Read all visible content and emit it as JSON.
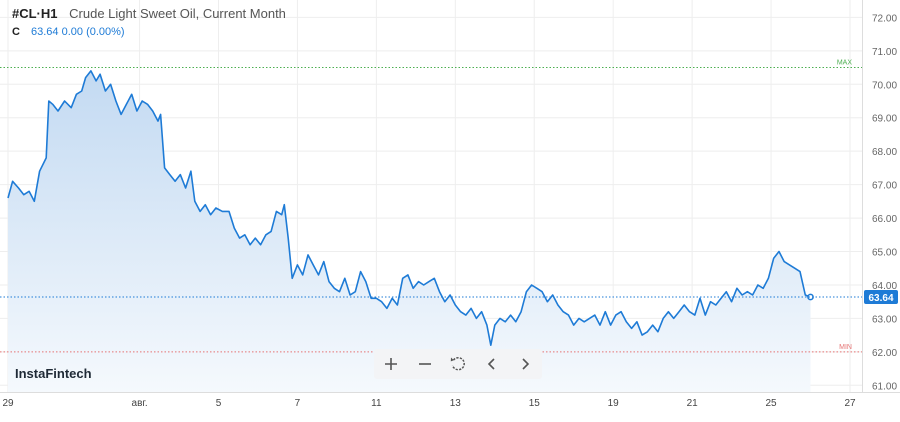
{
  "header": {
    "symbol": "#CL·H1",
    "instrument": "Crude Light Sweet Oil, Current Month",
    "ohlc_label": "C",
    "close_value": "63.64",
    "change": "0.00 (0.00%)"
  },
  "branding": {
    "logo_text": "InstaFintech"
  },
  "toolbar": {
    "buttons": [
      {
        "name": "zoom-in-button",
        "icon": "plus-icon"
      },
      {
        "name": "zoom-out-button",
        "icon": "minus-icon"
      },
      {
        "name": "reset-button",
        "icon": "reset-icon"
      },
      {
        "name": "scroll-left-button",
        "icon": "chevron-left-icon"
      },
      {
        "name": "scroll-right-button",
        "icon": "chevron-right-icon"
      }
    ]
  },
  "colors": {
    "line": "#1e7bd6",
    "fill_top": "#c3daf2",
    "fill_bottom": "#f5f9fd",
    "max_line": "#4caf50",
    "min_line": "#e57373",
    "last_price_bg": "#1e7bd6",
    "grid": "#eeeeee"
  },
  "chart_data": {
    "type": "area",
    "title": "Crude Light Sweet Oil, Current Month",
    "xlabel": "",
    "ylabel": "",
    "ylim": [
      60.8,
      72.4
    ],
    "y_ticks": [
      "72.00",
      "71.00",
      "70.00",
      "69.00",
      "68.00",
      "67.00",
      "66.00",
      "65.00",
      "64.00",
      "63.00",
      "62.00",
      "61.00"
    ],
    "x_ticks": [
      {
        "label": "29",
        "x": 0
      },
      {
        "label": "авг.",
        "x": 10
      },
      {
        "label": "5",
        "x": 16
      },
      {
        "label": "7",
        "x": 22
      },
      {
        "label": "11",
        "x": 28
      },
      {
        "label": "13",
        "x": 34
      },
      {
        "label": "15",
        "x": 40
      },
      {
        "label": "19",
        "x": 46
      },
      {
        "label": "21",
        "x": 52
      },
      {
        "label": "25",
        "x": 58
      },
      {
        "label": "27",
        "x": 64
      }
    ],
    "xlim": [
      0,
      64
    ],
    "max": {
      "label": "MAX",
      "value": 70.5
    },
    "min": {
      "label": "MIN",
      "value": 62.0
    },
    "last_price": {
      "label": "63.64",
      "value": 63.64
    },
    "grid": true,
    "series": [
      {
        "points": [
          [
            0,
            66.6
          ],
          [
            0.35,
            67.1
          ],
          [
            0.8,
            66.9
          ],
          [
            1.2,
            66.7
          ],
          [
            1.6,
            66.8
          ],
          [
            2.0,
            66.5
          ],
          [
            2.4,
            67.4
          ],
          [
            2.9,
            67.8
          ],
          [
            3.1,
            69.5
          ],
          [
            3.4,
            69.4
          ],
          [
            3.8,
            69.2
          ],
          [
            4.3,
            69.5
          ],
          [
            4.8,
            69.3
          ],
          [
            5.2,
            69.7
          ],
          [
            5.6,
            69.8
          ],
          [
            5.9,
            70.2
          ],
          [
            6.3,
            70.4
          ],
          [
            6.7,
            70.1
          ],
          [
            7.0,
            70.3
          ],
          [
            7.4,
            69.8
          ],
          [
            7.8,
            70.0
          ],
          [
            8.2,
            69.5
          ],
          [
            8.6,
            69.1
          ],
          [
            9.0,
            69.4
          ],
          [
            9.4,
            69.7
          ],
          [
            9.8,
            69.2
          ],
          [
            10.2,
            69.5
          ],
          [
            10.6,
            69.4
          ],
          [
            11.0,
            69.2
          ],
          [
            11.4,
            68.9
          ],
          [
            11.6,
            69.1
          ],
          [
            11.9,
            67.5
          ],
          [
            12.3,
            67.3
          ],
          [
            12.7,
            67.1
          ],
          [
            13.1,
            67.3
          ],
          [
            13.5,
            66.9
          ],
          [
            13.9,
            67.4
          ],
          [
            14.2,
            66.5
          ],
          [
            14.6,
            66.2
          ],
          [
            15.0,
            66.4
          ],
          [
            15.4,
            66.1
          ],
          [
            15.8,
            66.3
          ],
          [
            16.3,
            66.2
          ],
          [
            16.8,
            66.2
          ],
          [
            17.2,
            65.7
          ],
          [
            17.6,
            65.4
          ],
          [
            18.0,
            65.5
          ],
          [
            18.4,
            65.2
          ],
          [
            18.8,
            65.4
          ],
          [
            19.2,
            65.2
          ],
          [
            19.6,
            65.5
          ],
          [
            20.0,
            65.6
          ],
          [
            20.4,
            66.2
          ],
          [
            20.8,
            66.1
          ],
          [
            21.0,
            66.4
          ],
          [
            21.3,
            65.4
          ],
          [
            21.6,
            64.2
          ],
          [
            22.0,
            64.6
          ],
          [
            22.4,
            64.3
          ],
          [
            22.8,
            64.9
          ],
          [
            23.2,
            64.6
          ],
          [
            23.6,
            64.3
          ],
          [
            24.0,
            64.7
          ],
          [
            24.4,
            64.1
          ],
          [
            24.8,
            63.9
          ],
          [
            25.2,
            63.8
          ],
          [
            25.6,
            64.2
          ],
          [
            26.0,
            63.7
          ],
          [
            26.4,
            63.8
          ],
          [
            26.8,
            64.4
          ],
          [
            27.2,
            64.1
          ],
          [
            27.6,
            63.6
          ],
          [
            28.0,
            63.6
          ],
          [
            28.4,
            63.5
          ],
          [
            28.8,
            63.3
          ],
          [
            29.2,
            63.6
          ],
          [
            29.6,
            63.4
          ],
          [
            30.0,
            64.2
          ],
          [
            30.4,
            64.3
          ],
          [
            30.8,
            63.9
          ],
          [
            31.2,
            64.1
          ],
          [
            31.6,
            64.0
          ],
          [
            32.0,
            64.1
          ],
          [
            32.4,
            64.2
          ],
          [
            32.8,
            63.8
          ],
          [
            33.2,
            63.5
          ],
          [
            33.6,
            63.7
          ],
          [
            34.0,
            63.4
          ],
          [
            34.4,
            63.2
          ],
          [
            34.8,
            63.1
          ],
          [
            35.2,
            63.3
          ],
          [
            35.6,
            63.0
          ],
          [
            36.0,
            63.2
          ],
          [
            36.4,
            62.8
          ],
          [
            36.7,
            62.2
          ],
          [
            37.0,
            62.8
          ],
          [
            37.4,
            63.0
          ],
          [
            37.8,
            62.9
          ],
          [
            38.2,
            63.1
          ],
          [
            38.6,
            62.9
          ],
          [
            39.0,
            63.2
          ],
          [
            39.4,
            63.8
          ],
          [
            39.8,
            64.0
          ],
          [
            40.2,
            63.9
          ],
          [
            40.6,
            63.8
          ],
          [
            41.0,
            63.5
          ],
          [
            41.4,
            63.7
          ],
          [
            41.8,
            63.4
          ],
          [
            42.2,
            63.2
          ],
          [
            42.6,
            63.1
          ],
          [
            43.0,
            62.8
          ],
          [
            43.4,
            63.0
          ],
          [
            43.8,
            62.9
          ],
          [
            44.2,
            63.0
          ],
          [
            44.6,
            63.1
          ],
          [
            45.0,
            62.8
          ],
          [
            45.4,
            63.2
          ],
          [
            45.8,
            62.8
          ],
          [
            46.2,
            63.1
          ],
          [
            46.6,
            63.2
          ],
          [
            47.0,
            62.9
          ],
          [
            47.4,
            62.7
          ],
          [
            47.8,
            62.9
          ],
          [
            48.2,
            62.5
          ],
          [
            48.6,
            62.6
          ],
          [
            49.0,
            62.8
          ],
          [
            49.4,
            62.6
          ],
          [
            49.8,
            63.0
          ],
          [
            50.2,
            63.2
          ],
          [
            50.6,
            63.0
          ],
          [
            51.0,
            63.2
          ],
          [
            51.4,
            63.4
          ],
          [
            51.8,
            63.2
          ],
          [
            52.2,
            63.1
          ],
          [
            52.6,
            63.6
          ],
          [
            53.0,
            63.1
          ],
          [
            53.4,
            63.5
          ],
          [
            53.8,
            63.4
          ],
          [
            54.2,
            63.6
          ],
          [
            54.6,
            63.8
          ],
          [
            55.0,
            63.5
          ],
          [
            55.4,
            63.9
          ],
          [
            55.8,
            63.7
          ],
          [
            56.2,
            63.8
          ],
          [
            56.6,
            63.7
          ],
          [
            57.0,
            64.0
          ],
          [
            57.4,
            63.9
          ],
          [
            57.8,
            64.2
          ],
          [
            58.2,
            64.8
          ],
          [
            58.6,
            65.0
          ],
          [
            59.0,
            64.7
          ],
          [
            59.4,
            64.6
          ],
          [
            59.8,
            64.5
          ],
          [
            60.2,
            64.4
          ],
          [
            60.6,
            63.7
          ],
          [
            61.0,
            63.64
          ]
        ]
      }
    ]
  }
}
